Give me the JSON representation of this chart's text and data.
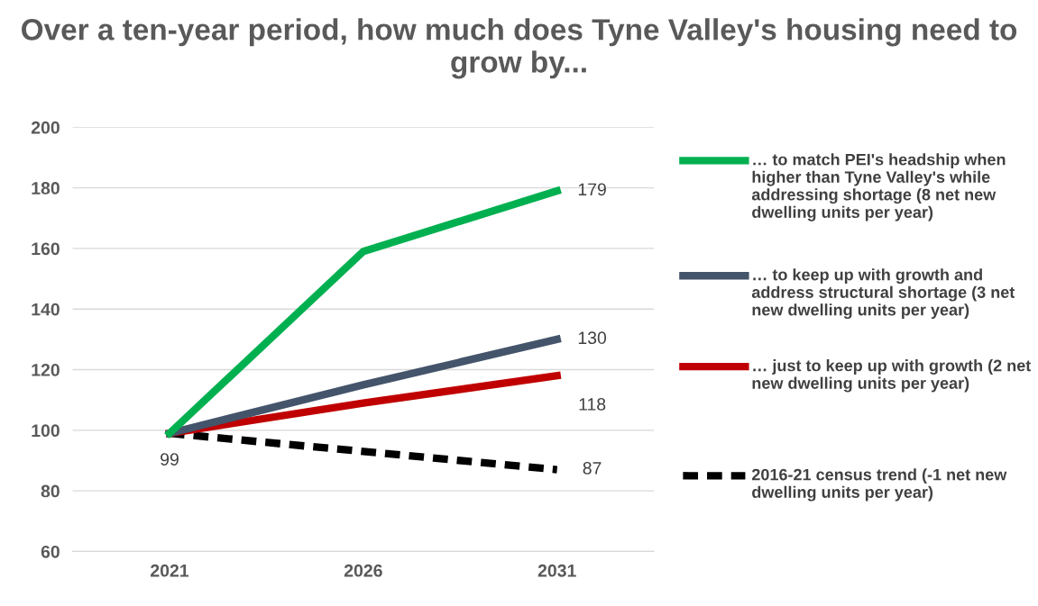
{
  "chart_data": {
    "type": "line",
    "title": "Over a ten-year period, how much does Tyne Valley's housing need to grow by...",
    "categories": [
      "2021",
      "2026",
      "2031"
    ],
    "series": [
      {
        "name": "… to match PEI's headship when higher than Tyne Valley's while addressing shortage (8 net new dwelling units per year)",
        "color": "#00b050",
        "values": [
          99,
          159,
          179
        ],
        "value_labels": [
          null,
          null,
          "179"
        ],
        "line_style": "solid"
      },
      {
        "name": "… to keep up with growth and address structural shortage (3 net new dwelling units per year)",
        "color": "#44546a",
        "values": [
          99,
          115,
          130
        ],
        "value_labels": [
          null,
          null,
          "130"
        ],
        "line_style": "solid"
      },
      {
        "name": "… just to keep up with growth (2 net new dwelling units per year)",
        "color": "#c00000",
        "values": [
          99,
          109,
          118
        ],
        "value_labels": [
          null,
          null,
          "118"
        ],
        "line_style": "solid"
      },
      {
        "name": "2016-21 census trend (-1 net new dwelling units per year)",
        "color": "#000000",
        "values": [
          99,
          93,
          87
        ],
        "value_labels": [
          "99",
          null,
          "87"
        ],
        "line_style": "dashed"
      }
    ],
    "ylim": [
      60,
      200
    ],
    "yticks": [
      60,
      80,
      100,
      120,
      140,
      160,
      180,
      200
    ],
    "grid": "y",
    "legend": "right",
    "marker": "none"
  }
}
